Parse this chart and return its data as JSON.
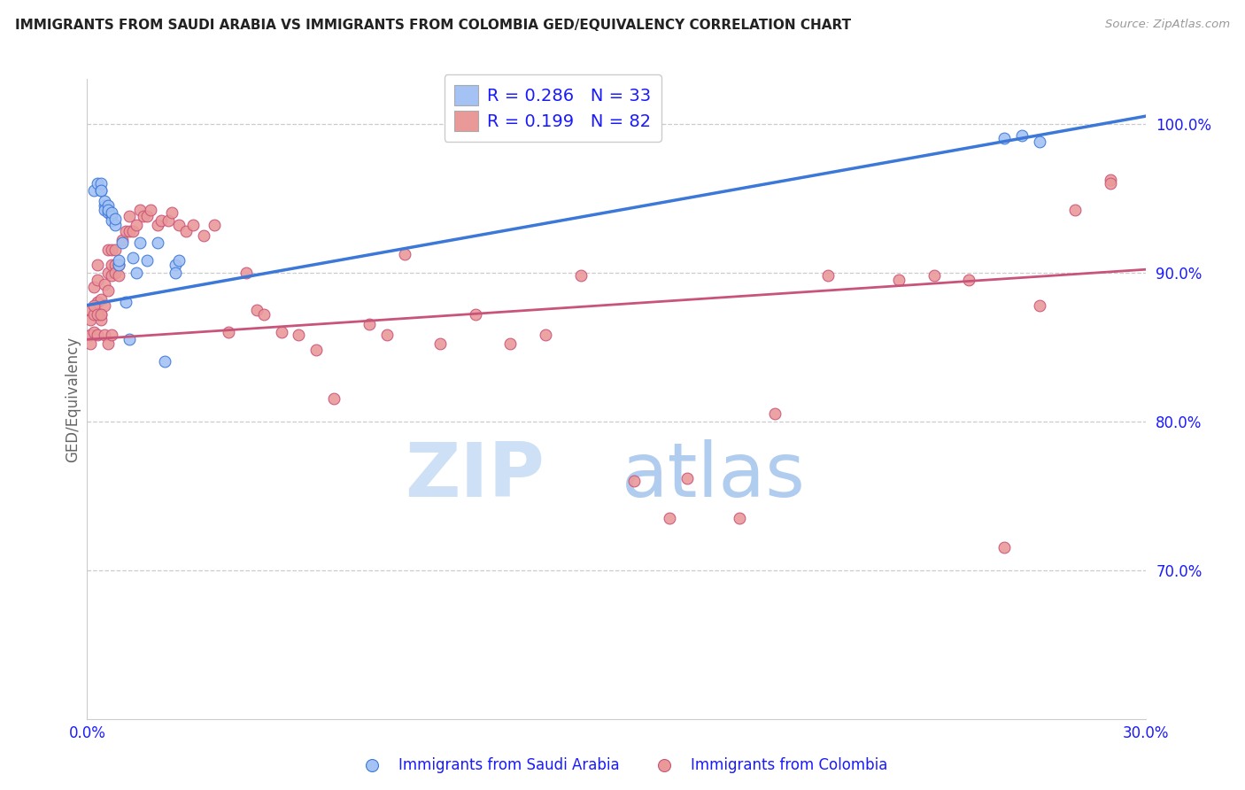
{
  "title": "IMMIGRANTS FROM SAUDI ARABIA VS IMMIGRANTS FROM COLOMBIA GED/EQUIVALENCY CORRELATION CHART",
  "source": "Source: ZipAtlas.com",
  "ylabel": "GED/Equivalency",
  "right_ytick_labels": [
    "100.0%",
    "90.0%",
    "80.0%",
    "70.0%"
  ],
  "right_ytick_vals": [
    1.0,
    0.9,
    0.8,
    0.7
  ],
  "xmin": 0.0,
  "xmax": 0.3,
  "ymin": 0.6,
  "ymax": 1.03,
  "legend_blue_r": "0.286",
  "legend_blue_n": "33",
  "legend_pink_r": "0.199",
  "legend_pink_n": "82",
  "legend_label_blue": "Immigrants from Saudi Arabia",
  "legend_label_pink": "Immigrants from Colombia",
  "blue_color": "#a4c2f4",
  "pink_color": "#ea9999",
  "blue_line_color": "#3c78d8",
  "pink_line_color": "#c9547a",
  "text_color": "#1a1aff",
  "title_color": "#222222",
  "blue_trend_x0": 0.0,
  "blue_trend_y0": 0.878,
  "blue_trend_x1": 0.3,
  "blue_trend_y1": 1.005,
  "pink_trend_x0": 0.0,
  "pink_trend_y0": 0.855,
  "pink_trend_x1": 0.3,
  "pink_trend_y1": 0.902,
  "blue_scatter_x": [
    0.002,
    0.003,
    0.004,
    0.004,
    0.004,
    0.005,
    0.005,
    0.005,
    0.006,
    0.006,
    0.006,
    0.007,
    0.007,
    0.007,
    0.008,
    0.008,
    0.009,
    0.009,
    0.01,
    0.011,
    0.012,
    0.013,
    0.014,
    0.015,
    0.017,
    0.02,
    0.022,
    0.025,
    0.025,
    0.026,
    0.26,
    0.265,
    0.27
  ],
  "blue_scatter_y": [
    0.955,
    0.96,
    0.955,
    0.96,
    0.955,
    0.945,
    0.948,
    0.942,
    0.94,
    0.945,
    0.942,
    0.938,
    0.935,
    0.94,
    0.932,
    0.936,
    0.905,
    0.908,
    0.92,
    0.88,
    0.855,
    0.91,
    0.9,
    0.92,
    0.908,
    0.92,
    0.84,
    0.905,
    0.9,
    0.908,
    0.99,
    0.992,
    0.988
  ],
  "pink_scatter_x": [
    0.001,
    0.001,
    0.001,
    0.002,
    0.002,
    0.002,
    0.003,
    0.003,
    0.003,
    0.004,
    0.004,
    0.004,
    0.005,
    0.005,
    0.006,
    0.006,
    0.006,
    0.007,
    0.007,
    0.007,
    0.008,
    0.008,
    0.008,
    0.009,
    0.009,
    0.01,
    0.011,
    0.012,
    0.012,
    0.013,
    0.014,
    0.015,
    0.016,
    0.017,
    0.018,
    0.02,
    0.021,
    0.023,
    0.024,
    0.026,
    0.028,
    0.03,
    0.033,
    0.036,
    0.04,
    0.045,
    0.048,
    0.05,
    0.055,
    0.06,
    0.065,
    0.07,
    0.08,
    0.085,
    0.09,
    0.1,
    0.11,
    0.12,
    0.13,
    0.14,
    0.155,
    0.165,
    0.17,
    0.185,
    0.195,
    0.21,
    0.23,
    0.24,
    0.25,
    0.26,
    0.27,
    0.28,
    0.29,
    0.001,
    0.002,
    0.003,
    0.003,
    0.004,
    0.005,
    0.006,
    0.007,
    0.29
  ],
  "pink_scatter_y": [
    0.875,
    0.868,
    0.858,
    0.89,
    0.872,
    0.86,
    0.905,
    0.895,
    0.88,
    0.882,
    0.872,
    0.868,
    0.892,
    0.878,
    0.915,
    0.9,
    0.888,
    0.915,
    0.905,
    0.898,
    0.915,
    0.905,
    0.9,
    0.905,
    0.898,
    0.922,
    0.928,
    0.938,
    0.928,
    0.928,
    0.932,
    0.942,
    0.938,
    0.938,
    0.942,
    0.932,
    0.935,
    0.935,
    0.94,
    0.932,
    0.928,
    0.932,
    0.925,
    0.932,
    0.86,
    0.9,
    0.875,
    0.872,
    0.86,
    0.858,
    0.848,
    0.815,
    0.865,
    0.858,
    0.912,
    0.852,
    0.872,
    0.852,
    0.858,
    0.898,
    0.76,
    0.735,
    0.762,
    0.735,
    0.805,
    0.898,
    0.895,
    0.898,
    0.895,
    0.715,
    0.878,
    0.942,
    0.962,
    0.852,
    0.878,
    0.872,
    0.858,
    0.872,
    0.858,
    0.852,
    0.858,
    0.96
  ]
}
